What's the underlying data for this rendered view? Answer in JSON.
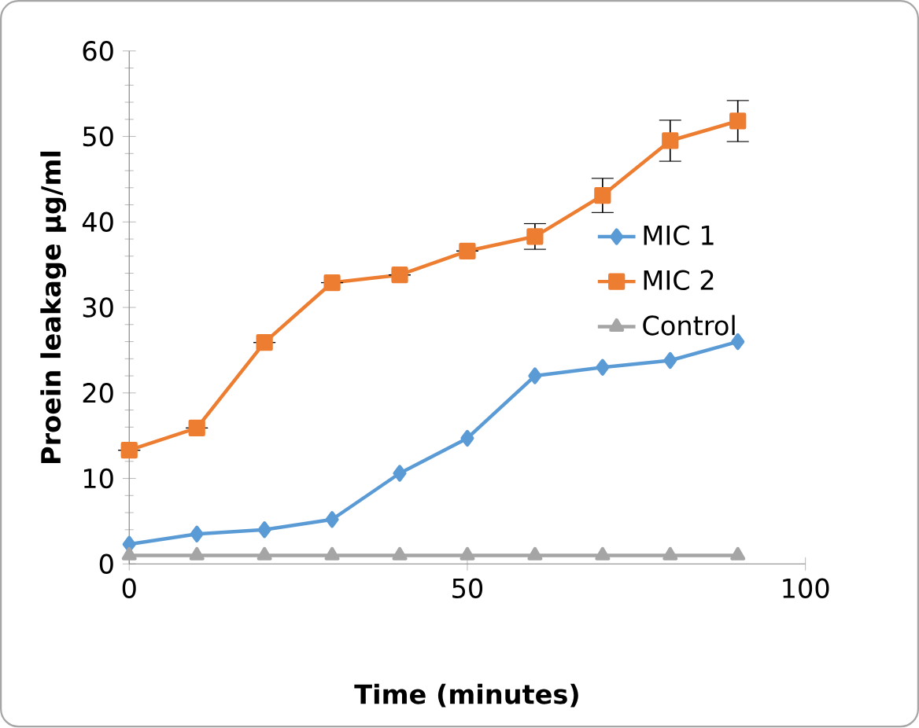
{
  "chart_data": {
    "type": "line",
    "xlabel": "Time (minutes)",
    "ylabel": "Proein leakage µg/ml",
    "x": [
      0,
      10,
      20,
      30,
      40,
      50,
      60,
      70,
      80,
      90
    ],
    "series": [
      {
        "name": "MIC 1",
        "color": "#5b9bd5",
        "marker": "diamond",
        "values": [
          2.3,
          3.5,
          4,
          5.2,
          10.6,
          14.7,
          22,
          23,
          23.8,
          26
        ]
      },
      {
        "name": "MIC 2",
        "color": "#ed7d31",
        "marker": "square",
        "values": [
          13.3,
          15.9,
          25.9,
          32.9,
          33.8,
          36.6,
          38.3,
          43.1,
          49.5,
          51.8
        ],
        "errors": [
          null,
          null,
          null,
          null,
          null,
          null,
          1.5,
          2,
          2.4,
          2.4
        ]
      },
      {
        "name": "Control",
        "color": "#a5a5a5",
        "marker": "triangle",
        "values": [
          1,
          1,
          1,
          1,
          1,
          1,
          1,
          1,
          1,
          1
        ]
      }
    ],
    "xlim": [
      0,
      100
    ],
    "ylim": [
      0,
      60
    ],
    "xticks": [
      0,
      50,
      100
    ],
    "yticks": [
      0,
      10,
      20,
      30,
      40,
      50,
      60
    ],
    "grid": false,
    "legend": "right",
    "line_style": "solid"
  }
}
